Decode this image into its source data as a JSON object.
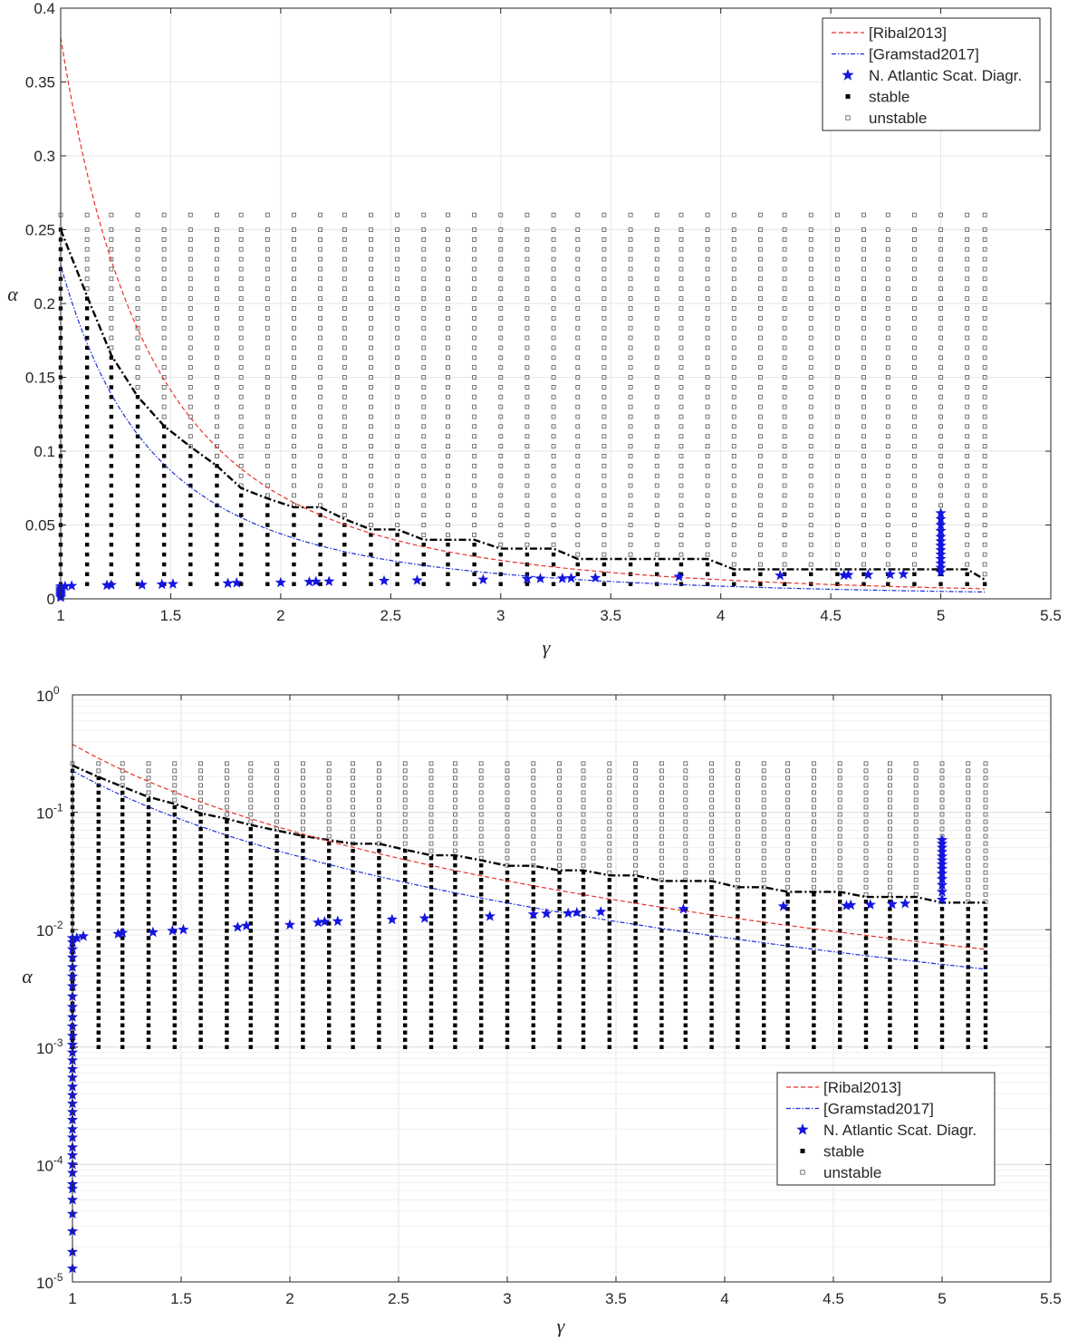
{
  "chart_data": [
    {
      "type": "scatter",
      "title": "",
      "xlabel": "γ",
      "ylabel": "α",
      "xlim": [
        1,
        5.5
      ],
      "ylim": [
        0,
        0.4
      ],
      "yscale": "linear",
      "grid": true,
      "legend_position": "top-right",
      "x_ticks": [
        "1",
        "1.5",
        "2",
        "2.5",
        "3",
        "3.5",
        "4",
        "4.5",
        "5",
        "5.5"
      ],
      "y_ticks": [
        "0",
        "0.05",
        "0.1",
        "0.15",
        "0.2",
        "0.25",
        "0.3",
        "0.35",
        "0.4"
      ],
      "legend": [
        "[Ribal2013]",
        "[Gramstad2017]",
        "N. Atlantic Scat. Diagr.",
        "stable",
        "unstable"
      ],
      "series": [
        {
          "name": "[Ribal2013]",
          "kind": "dashed-line",
          "color": "#e8302a"
        },
        {
          "name": "[Gramstad2017]",
          "kind": "dashdot-line",
          "color": "#1a2fd6"
        },
        {
          "name": "N. Atlantic Scat. Diagr.",
          "kind": "star-marker",
          "color": "#1515e0"
        },
        {
          "name": "stable",
          "kind": "filled-square",
          "color": "#000000"
        },
        {
          "name": "unstable",
          "kind": "open-square",
          "color": "#555555"
        }
      ],
      "grid_columns_gamma": [
        1.0,
        1.12,
        1.23,
        1.35,
        1.47,
        1.59,
        1.71,
        1.82,
        1.94,
        2.06,
        2.18,
        2.29,
        2.41,
        2.53,
        2.65,
        2.76,
        2.88,
        3.0,
        3.12,
        3.24,
        3.35,
        3.47,
        3.59,
        3.71,
        3.82,
        3.94,
        4.06,
        4.18,
        4.29,
        4.41,
        4.53,
        4.65,
        4.76,
        4.88,
        5.0,
        5.12,
        5.2
      ],
      "alpha_grid_linear": [
        0.01,
        0.0167,
        0.0233,
        0.03,
        0.0367,
        0.0433,
        0.05,
        0.0567,
        0.0633,
        0.07,
        0.0767,
        0.0833,
        0.09,
        0.0967,
        0.1033,
        0.11,
        0.1167,
        0.1233,
        0.13,
        0.1367,
        0.1433,
        0.15,
        0.1567,
        0.1633,
        0.17,
        0.1767,
        0.1833,
        0.19,
        0.1967,
        0.2033,
        0.21,
        0.2167,
        0.2233,
        0.23,
        0.2367,
        0.2433,
        0.25,
        0.26
      ],
      "stability_boundary": {
        "x": [
          1.0,
          1.12,
          1.23,
          1.35,
          1.47,
          1.59,
          1.71,
          1.82,
          1.94,
          2.06,
          2.18,
          2.29,
          2.41,
          2.53,
          2.65,
          2.76,
          2.88,
          3.0,
          3.12,
          3.24,
          3.35,
          3.47,
          3.59,
          3.71,
          3.82,
          3.94,
          4.06,
          4.18,
          4.29,
          4.41,
          4.53,
          4.65,
          4.76,
          4.88,
          5.0,
          5.12,
          5.2
        ],
        "y": [
          0.25,
          0.205,
          0.165,
          0.137,
          0.117,
          0.103,
          0.09,
          0.075,
          0.068,
          0.062,
          0.062,
          0.054,
          0.047,
          0.047,
          0.04,
          0.04,
          0.04,
          0.034,
          0.034,
          0.034,
          0.027,
          0.027,
          0.027,
          0.027,
          0.027,
          0.027,
          0.02,
          0.02,
          0.02,
          0.02,
          0.02,
          0.02,
          0.02,
          0.02,
          0.02,
          0.02,
          0.013
        ]
      },
      "observations": [
        {
          "x": 1.0,
          "y": 0.001
        },
        {
          "x": 1.0,
          "y": 0.002
        },
        {
          "x": 1.0,
          "y": 0.003
        },
        {
          "x": 1.0,
          "y": 0.004
        },
        {
          "x": 1.0,
          "y": 0.005
        },
        {
          "x": 1.0,
          "y": 0.006
        },
        {
          "x": 1.0,
          "y": 0.007
        },
        {
          "x": 1.0,
          "y": 0.0085
        },
        {
          "x": 1.02,
          "y": 0.0085
        },
        {
          "x": 1.05,
          "y": 0.0088
        },
        {
          "x": 1.21,
          "y": 0.0092
        },
        {
          "x": 1.23,
          "y": 0.0094
        },
        {
          "x": 1.37,
          "y": 0.0095
        },
        {
          "x": 1.46,
          "y": 0.0098
        },
        {
          "x": 1.51,
          "y": 0.01
        },
        {
          "x": 1.76,
          "y": 0.0105
        },
        {
          "x": 1.8,
          "y": 0.0108
        },
        {
          "x": 2.0,
          "y": 0.011
        },
        {
          "x": 2.13,
          "y": 0.0115
        },
        {
          "x": 2.16,
          "y": 0.0117
        },
        {
          "x": 2.22,
          "y": 0.0118
        },
        {
          "x": 2.47,
          "y": 0.0122
        },
        {
          "x": 2.62,
          "y": 0.0125
        },
        {
          "x": 2.92,
          "y": 0.013
        },
        {
          "x": 3.12,
          "y": 0.0135
        },
        {
          "x": 3.18,
          "y": 0.0137
        },
        {
          "x": 3.28,
          "y": 0.0138
        },
        {
          "x": 3.32,
          "y": 0.014
        },
        {
          "x": 3.43,
          "y": 0.0142
        },
        {
          "x": 3.81,
          "y": 0.015
        },
        {
          "x": 4.27,
          "y": 0.0158
        },
        {
          "x": 4.56,
          "y": 0.016
        },
        {
          "x": 4.58,
          "y": 0.0162
        },
        {
          "x": 4.67,
          "y": 0.0163
        },
        {
          "x": 4.77,
          "y": 0.0165
        },
        {
          "x": 4.83,
          "y": 0.0167
        },
        {
          "x": 5.0,
          "y": 0.018
        },
        {
          "x": 5.0,
          "y": 0.021
        },
        {
          "x": 5.0,
          "y": 0.024
        },
        {
          "x": 5.0,
          "y": 0.027
        },
        {
          "x": 5.0,
          "y": 0.03
        },
        {
          "x": 5.0,
          "y": 0.033
        },
        {
          "x": 5.0,
          "y": 0.036
        },
        {
          "x": 5.0,
          "y": 0.039
        },
        {
          "x": 5.0,
          "y": 0.042
        },
        {
          "x": 5.0,
          "y": 0.046
        },
        {
          "x": 5.0,
          "y": 0.05
        },
        {
          "x": 5.0,
          "y": 0.054
        },
        {
          "x": 5.0,
          "y": 0.058
        }
      ]
    },
    {
      "type": "scatter",
      "title": "",
      "xlabel": "γ",
      "ylabel": "α",
      "xlim": [
        1,
        5.5
      ],
      "ylim": [
        1e-05,
        1
      ],
      "yscale": "log",
      "grid": true,
      "legend_position": "bottom-right",
      "x_ticks": [
        "1",
        "1.5",
        "2",
        "2.5",
        "3",
        "3.5",
        "4",
        "4.5",
        "5",
        "5.5"
      ],
      "y_ticks": [
        {
          "base": "10",
          "exp": "-5",
          "value": 1e-05
        },
        {
          "base": "10",
          "exp": "-4",
          "value": 0.0001
        },
        {
          "base": "10",
          "exp": "-3",
          "value": 0.001
        },
        {
          "base": "10",
          "exp": "-2",
          "value": 0.01
        },
        {
          "base": "10",
          "exp": "-1",
          "value": 0.1
        },
        {
          "base": "10",
          "exp": "0",
          "value": 1
        }
      ],
      "legend": [
        "[Ribal2013]",
        "[Gramstad2017]",
        "N. Atlantic Scat. Diagr.",
        "stable",
        "unstable"
      ],
      "series": [
        {
          "name": "[Ribal2013]",
          "kind": "dashed-line",
          "color": "#e8302a"
        },
        {
          "name": "[Gramstad2017]",
          "kind": "dashdot-line",
          "color": "#1a2fd6"
        },
        {
          "name": "N. Atlantic Scat. Diagr.",
          "kind": "star-marker",
          "color": "#1515e0"
        },
        {
          "name": "stable",
          "kind": "filled-square",
          "color": "#000000"
        },
        {
          "name": "unstable",
          "kind": "open-square",
          "color": "#555555"
        }
      ],
      "grid_columns_gamma": [
        1.0,
        1.12,
        1.23,
        1.35,
        1.47,
        1.59,
        1.71,
        1.82,
        1.94,
        2.06,
        2.18,
        2.29,
        2.41,
        2.53,
        2.65,
        2.76,
        2.88,
        3.0,
        3.12,
        3.24,
        3.35,
        3.47,
        3.59,
        3.71,
        3.82,
        3.94,
        4.06,
        4.18,
        4.29,
        4.41,
        4.53,
        4.65,
        4.76,
        4.88,
        5.0,
        5.12,
        5.2
      ],
      "alpha_grid_log_range": [
        0.001,
        0.26
      ],
      "alpha_grid_log_count": 40,
      "stability_boundary": {
        "x": [
          1.0,
          1.12,
          1.23,
          1.35,
          1.47,
          1.59,
          1.71,
          1.82,
          1.94,
          2.06,
          2.18,
          2.29,
          2.41,
          2.53,
          2.65,
          2.76,
          2.88,
          3.0,
          3.12,
          3.24,
          3.35,
          3.47,
          3.59,
          3.71,
          3.82,
          3.94,
          4.06,
          4.18,
          4.29,
          4.41,
          4.53,
          4.65,
          4.76,
          4.88,
          5.0,
          5.12,
          5.2
        ],
        "y": [
          0.25,
          0.2,
          0.165,
          0.135,
          0.118,
          0.098,
          0.088,
          0.078,
          0.07,
          0.063,
          0.058,
          0.054,
          0.054,
          0.048,
          0.043,
          0.043,
          0.039,
          0.035,
          0.035,
          0.032,
          0.032,
          0.029,
          0.029,
          0.026,
          0.026,
          0.026,
          0.023,
          0.023,
          0.021,
          0.021,
          0.021,
          0.019,
          0.019,
          0.019,
          0.017,
          0.017,
          0.017
        ]
      },
      "observations": [
        {
          "x": 1.0,
          "y": 1.3e-05
        },
        {
          "x": 1.0,
          "y": 1.8e-05
        },
        {
          "x": 1.0,
          "y": 2.7e-05
        },
        {
          "x": 1.0,
          "y": 3.8e-05
        },
        {
          "x": 1.0,
          "y": 5e-05
        },
        {
          "x": 1.0,
          "y": 6.2e-05
        },
        {
          "x": 1.0,
          "y": 6.8e-05
        },
        {
          "x": 1.0,
          "y": 8.5e-05
        },
        {
          "x": 1.0,
          "y": 0.0001
        },
        {
          "x": 1.0,
          "y": 0.00012
        },
        {
          "x": 1.0,
          "y": 0.00014
        },
        {
          "x": 1.0,
          "y": 0.00017
        },
        {
          "x": 1.0,
          "y": 0.0002
        },
        {
          "x": 1.0,
          "y": 0.00024
        },
        {
          "x": 1.0,
          "y": 0.00028
        },
        {
          "x": 1.0,
          "y": 0.00033
        },
        {
          "x": 1.0,
          "y": 0.00039
        },
        {
          "x": 1.0,
          "y": 0.00046
        },
        {
          "x": 1.0,
          "y": 0.00055
        },
        {
          "x": 1.0,
          "y": 0.00065
        },
        {
          "x": 1.0,
          "y": 0.00077
        },
        {
          "x": 1.0,
          "y": 0.0009
        },
        {
          "x": 1.0,
          "y": 0.00105
        },
        {
          "x": 1.0,
          "y": 0.00125
        },
        {
          "x": 1.0,
          "y": 0.0015
        },
        {
          "x": 1.0,
          "y": 0.0018
        },
        {
          "x": 1.0,
          "y": 0.0022
        },
        {
          "x": 1.0,
          "y": 0.0027
        },
        {
          "x": 1.0,
          "y": 0.0033
        },
        {
          "x": 1.0,
          "y": 0.004
        },
        {
          "x": 1.0,
          "y": 0.0048
        },
        {
          "x": 1.0,
          "y": 0.0058
        },
        {
          "x": 1.0,
          "y": 0.0068
        },
        {
          "x": 1.0,
          "y": 0.0078
        },
        {
          "x": 1.0,
          "y": 0.0085
        },
        {
          "x": 1.02,
          "y": 0.0085
        },
        {
          "x": 1.05,
          "y": 0.0088
        },
        {
          "x": 1.21,
          "y": 0.0092
        },
        {
          "x": 1.23,
          "y": 0.0094
        },
        {
          "x": 1.37,
          "y": 0.0095
        },
        {
          "x": 1.46,
          "y": 0.0098
        },
        {
          "x": 1.51,
          "y": 0.01
        },
        {
          "x": 1.76,
          "y": 0.0105
        },
        {
          "x": 1.8,
          "y": 0.0108
        },
        {
          "x": 2.0,
          "y": 0.011
        },
        {
          "x": 2.13,
          "y": 0.0115
        },
        {
          "x": 2.16,
          "y": 0.0117
        },
        {
          "x": 2.22,
          "y": 0.0118
        },
        {
          "x": 2.47,
          "y": 0.0122
        },
        {
          "x": 2.62,
          "y": 0.0125
        },
        {
          "x": 2.92,
          "y": 0.013
        },
        {
          "x": 3.12,
          "y": 0.0135
        },
        {
          "x": 3.18,
          "y": 0.0137
        },
        {
          "x": 3.28,
          "y": 0.0138
        },
        {
          "x": 3.32,
          "y": 0.014
        },
        {
          "x": 3.43,
          "y": 0.0142
        },
        {
          "x": 3.81,
          "y": 0.015
        },
        {
          "x": 4.27,
          "y": 0.0158
        },
        {
          "x": 4.56,
          "y": 0.016
        },
        {
          "x": 4.58,
          "y": 0.0162
        },
        {
          "x": 4.67,
          "y": 0.0163
        },
        {
          "x": 4.77,
          "y": 0.0165
        },
        {
          "x": 4.83,
          "y": 0.0167
        },
        {
          "x": 5.0,
          "y": 0.018
        },
        {
          "x": 5.0,
          "y": 0.021
        },
        {
          "x": 5.0,
          "y": 0.024
        },
        {
          "x": 5.0,
          "y": 0.027
        },
        {
          "x": 5.0,
          "y": 0.03
        },
        {
          "x": 5.0,
          "y": 0.033
        },
        {
          "x": 5.0,
          "y": 0.036
        },
        {
          "x": 5.0,
          "y": 0.039
        },
        {
          "x": 5.0,
          "y": 0.042
        },
        {
          "x": 5.0,
          "y": 0.046
        },
        {
          "x": 5.0,
          "y": 0.05
        },
        {
          "x": 5.0,
          "y": 0.054
        },
        {
          "x": 5.0,
          "y": 0.058
        }
      ]
    }
  ]
}
